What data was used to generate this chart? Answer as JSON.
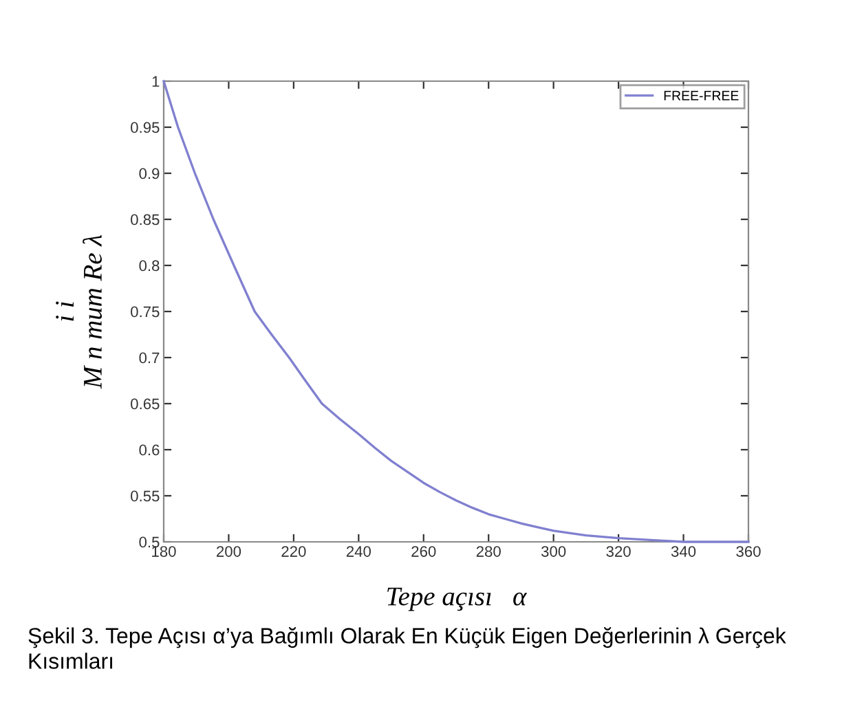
{
  "chart_data": {
    "type": "line",
    "xlabel": "Tepe açısı   α",
    "ylabel": "i i\nM n mum Re λ",
    "series": [
      {
        "name": "FREE-FREE",
        "color": "#8080d0",
        "x": [
          180,
          184.4,
          189.6,
          195.3,
          201.6,
          204.8,
          208,
          213.2,
          218.6,
          223.6,
          228.7,
          234.3,
          240,
          245,
          250,
          255,
          260,
          265,
          270,
          275,
          280,
          285,
          290,
          295,
          300,
          310,
          320,
          330,
          340,
          350,
          360
        ],
        "values": [
          1,
          0.95,
          0.9,
          0.85,
          0.8,
          0.775,
          0.75,
          0.725,
          0.7,
          0.675,
          0.65,
          0.633,
          0.617,
          0.602,
          0.588,
          0.576,
          0.564,
          0.554,
          0.545,
          0.537,
          0.53,
          0.525,
          0.52,
          0.516,
          0.512,
          0.507,
          0.504,
          0.502,
          0.5,
          0.5,
          0.5
        ]
      }
    ],
    "xlim": [
      180,
      360
    ],
    "xticks": [
      180,
      200,
      220,
      240,
      260,
      280,
      300,
      320,
      340,
      360
    ],
    "ylim": [
      0.5,
      1
    ],
    "yticks": [
      0.5,
      0.55,
      0.6,
      0.65,
      0.7,
      0.75,
      0.8,
      0.85,
      0.9,
      0.95,
      1
    ],
    "legend": "top right",
    "grid": false,
    "annotations": [
      "Şekil 3. Tepe Açısı α’ya Bağımlı Olarak En Küçük Eigen Değerlerinin λ Gerçek Kısımları"
    ]
  }
}
